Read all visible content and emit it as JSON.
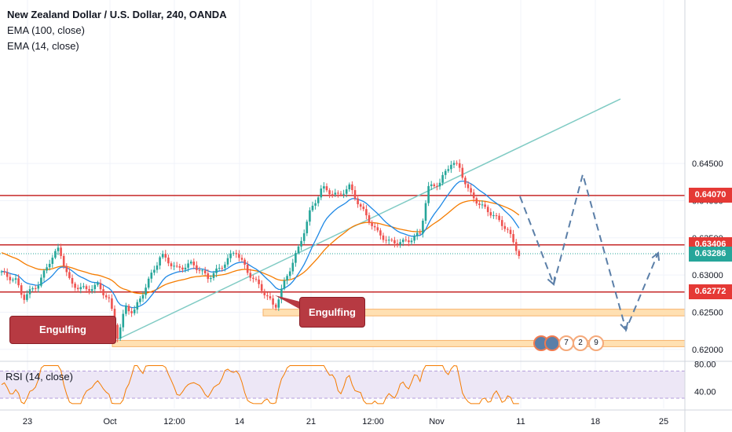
{
  "legend": {
    "title": "New Zealand Dollar / U.S. Dollar, 240, OANDA",
    "ema100": "EMA (100, close)",
    "ema14": "EMA (14, close)"
  },
  "rsi": {
    "label": "RSI (14, close)"
  },
  "callouts": {
    "first": "Engulfing",
    "second": "Engulfing"
  },
  "events": [
    "7",
    "2",
    "9"
  ],
  "colors": {
    "resistance_line": "#c62828",
    "label_red": "#e53935",
    "label_teal": "#26a69a",
    "trendline": "#80cbc4",
    "ema100": "#f57c00",
    "ema14": "#1e88e5",
    "support_zone_fill": "#ffe0b2",
    "support_zone_border": "#f6b26b",
    "projection": "#5b7fa8",
    "rsi_line": "#f57c00",
    "rsi_band": "#ede7f6"
  },
  "chart_data": {
    "type": "candlestick",
    "price_axis": {
      "tick_labels": [
        "0.64500",
        "0.64000",
        "0.63500",
        "0.63000",
        "0.62500",
        "0.62000"
      ],
      "range": [
        0.6186,
        0.667
      ]
    },
    "time_axis": {
      "tick_labels": [
        "23",
        "Oct",
        "12:00",
        "14",
        "21",
        "12:00",
        "Nov",
        "11",
        "18",
        "25"
      ]
    },
    "horizontal_levels": [
      {
        "value": 0.6407,
        "label": "0.64070"
      },
      {
        "value": 0.63406,
        "label": "0.63406"
      },
      {
        "value": 0.62772,
        "label": "0.62772"
      }
    ],
    "current_price": {
      "value": 0.63286,
      "label": "0.63286"
    },
    "support_zones": [
      {
        "from": 0.6245,
        "to": 0.6254
      },
      {
        "from": 0.6204,
        "to": 0.6212
      }
    ],
    "rsi_axis": {
      "tick_labels": [
        "80.00",
        "40.00"
      ],
      "range": [
        15,
        82
      ],
      "band": [
        30,
        70
      ]
    }
  }
}
